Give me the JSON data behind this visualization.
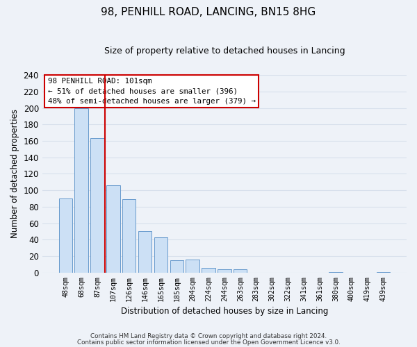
{
  "title": "98, PENHILL ROAD, LANCING, BN15 8HG",
  "subtitle": "Size of property relative to detached houses in Lancing",
  "xlabel": "Distribution of detached houses by size in Lancing",
  "ylabel": "Number of detached properties",
  "bar_labels": [
    "48sqm",
    "68sqm",
    "87sqm",
    "107sqm",
    "126sqm",
    "146sqm",
    "165sqm",
    "185sqm",
    "204sqm",
    "224sqm",
    "244sqm",
    "263sqm",
    "283sqm",
    "302sqm",
    "322sqm",
    "341sqm",
    "361sqm",
    "380sqm",
    "400sqm",
    "419sqm",
    "439sqm"
  ],
  "bar_values": [
    90,
    200,
    163,
    106,
    89,
    50,
    43,
    15,
    16,
    6,
    4,
    4,
    0,
    0,
    0,
    0,
    0,
    1,
    0,
    0,
    1
  ],
  "bar_color": "#cce0f5",
  "bar_edge_color": "#6699cc",
  "vline_color": "#cc0000",
  "ylim": [
    0,
    240
  ],
  "yticks": [
    0,
    20,
    40,
    60,
    80,
    100,
    120,
    140,
    160,
    180,
    200,
    220,
    240
  ],
  "annotation_title": "98 PENHILL ROAD: 101sqm",
  "annotation_line1": "← 51% of detached houses are smaller (396)",
  "annotation_line2": "48% of semi-detached houses are larger (379) →",
  "annotation_box_color": "#ffffff",
  "annotation_box_edge": "#cc0000",
  "footer1": "Contains HM Land Registry data © Crown copyright and database right 2024.",
  "footer2": "Contains public sector information licensed under the Open Government Licence v3.0.",
  "background_color": "#eef2f8",
  "grid_color": "#d8e0ec",
  "plot_bg_color": "#eef2f8"
}
